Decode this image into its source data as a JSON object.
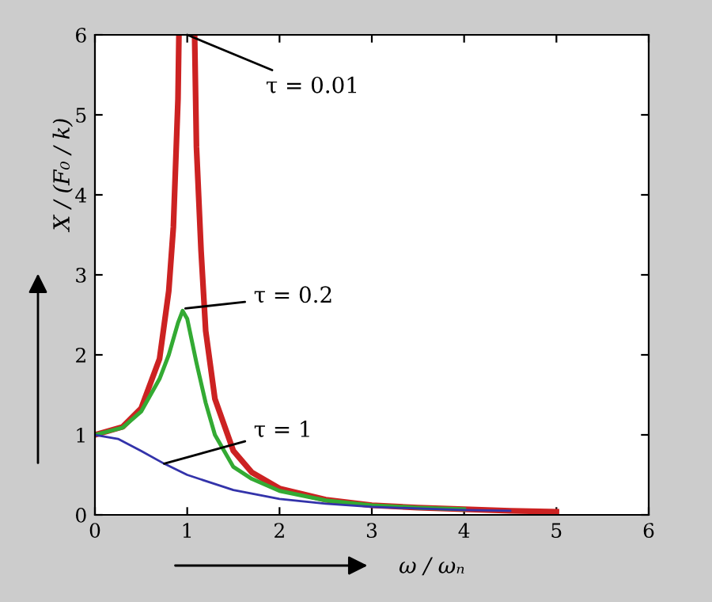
{
  "chart_data": {
    "type": "line",
    "xlabel": "ω / ωₙ",
    "ylabel": "X / (F₀ / k)",
    "xlim": [
      0,
      6
    ],
    "ylim": [
      0,
      6
    ],
    "xticks": [
      0,
      1,
      2,
      3,
      4,
      5,
      6
    ],
    "yticks": [
      0,
      1,
      2,
      3,
      4,
      5,
      6
    ],
    "grid": false,
    "legend": false,
    "marker": "none",
    "line_style": "solid",
    "series": [
      {
        "color": "#cc2222",
        "x": [
          0,
          0.3,
          0.5,
          0.7,
          0.8,
          0.85,
          0.9,
          0.91,
          1.0,
          1.08,
          1.1,
          1.15,
          1.2,
          1.3,
          1.5,
          1.7,
          2,
          2.5,
          3,
          3.5,
          4,
          4.5,
          5
        ],
        "values": [
          1,
          1.1,
          1.33,
          1.95,
          2.8,
          3.6,
          5.2,
          6,
          null,
          6,
          4.6,
          3.3,
          2.3,
          1.45,
          0.8,
          0.53,
          0.33,
          0.19,
          0.12,
          0.09,
          0.07,
          0.05,
          0.04
        ]
      },
      {
        "color": "#33aa33",
        "x": [
          0,
          0.3,
          0.5,
          0.7,
          0.8,
          0.9,
          0.95,
          1.0,
          1.1,
          1.2,
          1.3,
          1.5,
          1.7,
          2,
          2.5,
          3,
          3.5,
          4
        ],
        "values": [
          1,
          1.09,
          1.29,
          1.7,
          2.0,
          2.4,
          2.55,
          2.45,
          1.9,
          1.4,
          1.0,
          0.6,
          0.45,
          0.3,
          0.18,
          0.12,
          0.09,
          0.07
        ]
      },
      {
        "color": "#3333aa",
        "x": [
          0,
          0.25,
          0.5,
          0.75,
          1,
          1.5,
          2,
          2.5,
          3,
          3.5,
          4,
          4.5
        ],
        "values": [
          1,
          0.95,
          0.8,
          0.64,
          0.5,
          0.31,
          0.2,
          0.14,
          0.1,
          0.08,
          0.06,
          0.05
        ]
      }
    ],
    "annotations": [
      {
        "text": "τ = 0.01",
        "x": 1.0,
        "y": 6
      },
      {
        "text": "τ = 0.2",
        "x": 0.98,
        "y": 2.58
      },
      {
        "text": "τ = 1",
        "x": 0.75,
        "y": 0.64
      }
    ]
  }
}
